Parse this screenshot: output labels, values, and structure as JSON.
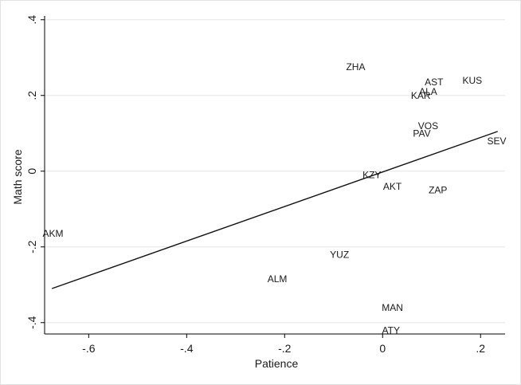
{
  "chart_data": {
    "type": "scatter",
    "xlabel": "Patience",
    "ylabel": "Math score",
    "xlim": [
      -0.69,
      0.25
    ],
    "ylim": [
      -0.43,
      0.41
    ],
    "xticks": [
      -0.6,
      -0.4,
      -0.2,
      0,
      0.2
    ],
    "xtick_labels": [
      "-.6",
      "-.4",
      "-.2",
      "0",
      ".2"
    ],
    "yticks": [
      -0.4,
      -0.2,
      0,
      0.2,
      0.4
    ],
    "ytick_labels": [
      "-.4",
      "-.2",
      "0",
      ".2",
      ".4"
    ],
    "grid": "horizontal",
    "points": [
      {
        "label": "ZHA",
        "x": -0.055,
        "y": 0.275
      },
      {
        "label": "AST",
        "x": 0.105,
        "y": 0.235
      },
      {
        "label": "KUS",
        "x": 0.183,
        "y": 0.24
      },
      {
        "label": "ALA",
        "x": 0.093,
        "y": 0.21
      },
      {
        "label": "KAR",
        "x": 0.078,
        "y": 0.2
      },
      {
        "label": "VOS",
        "x": 0.093,
        "y": 0.12
      },
      {
        "label": "PAV",
        "x": 0.08,
        "y": 0.1
      },
      {
        "label": "SEV",
        "x": 0.233,
        "y": 0.08
      },
      {
        "label": "KZY",
        "x": -0.022,
        "y": -0.01
      },
      {
        "label": "AKT",
        "x": 0.02,
        "y": -0.04
      },
      {
        "label": "ZAP",
        "x": 0.113,
        "y": -0.05
      },
      {
        "label": "AKM",
        "x": -0.673,
        "y": -0.165
      },
      {
        "label": "YUZ",
        "x": -0.088,
        "y": -0.22
      },
      {
        "label": "ALM",
        "x": -0.215,
        "y": -0.285
      },
      {
        "label": "MAN",
        "x": 0.02,
        "y": -0.36
      },
      {
        "label": "ATY",
        "x": 0.017,
        "y": -0.42
      }
    ],
    "fit_line": {
      "x": [
        -0.675,
        0.235
      ],
      "y": [
        -0.31,
        0.105
      ]
    }
  }
}
